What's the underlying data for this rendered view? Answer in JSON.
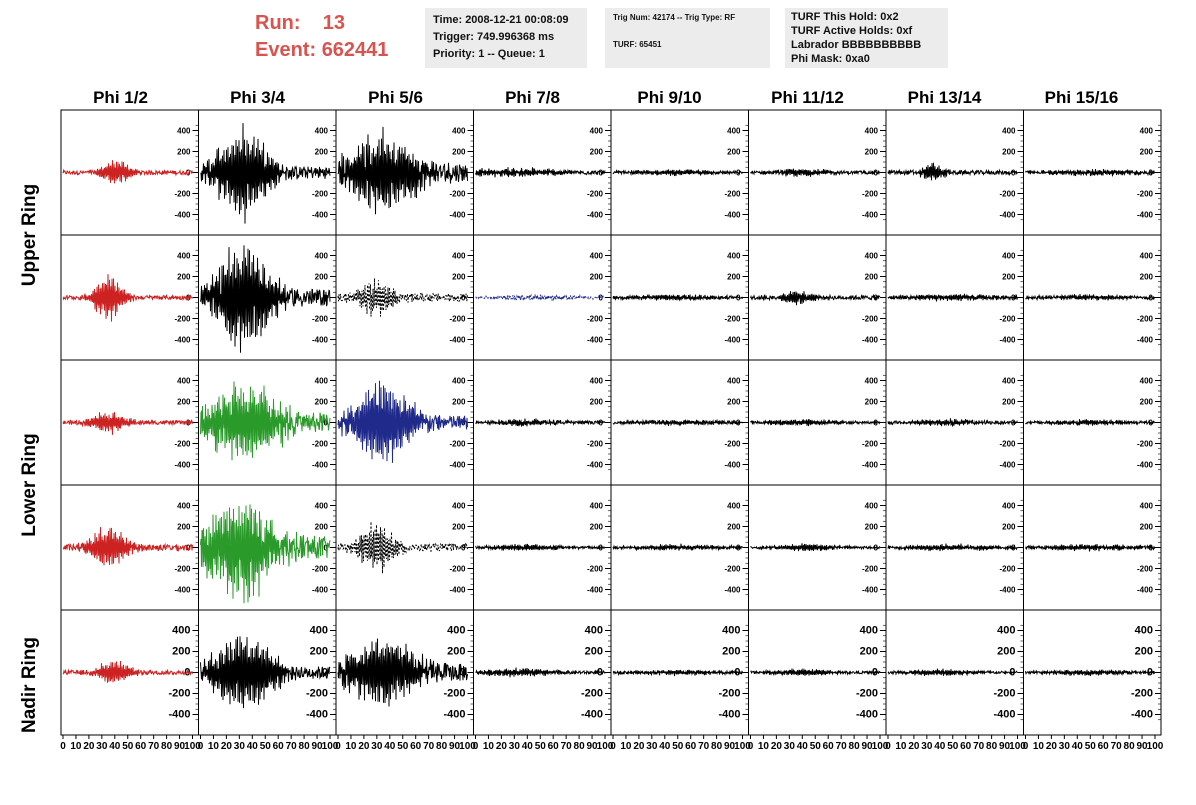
{
  "header": {
    "run_label": "Run:",
    "run_value": "13",
    "event_label": "Event:",
    "event_value": "662441"
  },
  "time_box": {
    "time": "Time: 2008-12-21 00:08:09",
    "trigger": "Trigger: 749.996368 ms",
    "priority": "Priority: 1 -- Queue: 1"
  },
  "trig_box": {
    "trig": "Trig Num: 42174 -- Trig Type: RF",
    "turf": "TURF: 65451"
  },
  "turf_box": {
    "hold": "TURF This Hold: 0x2",
    "active": "TURF Active Holds: 0xf",
    "labrador": "Labrador BBBBBBBBBB",
    "phimask": "Phi Mask: 0xa0"
  },
  "chart_data": {
    "type": "line",
    "columns": [
      "Phi 1/2",
      "Phi 3/4",
      "Phi 5/6",
      "Phi 7/8",
      "Phi 9/10",
      "Phi 11/12",
      "Phi 13/14",
      "Phi 15/16"
    ],
    "rings": [
      "Upper Ring",
      "Lower Ring",
      "Nadir Ring"
    ],
    "ylim": [
      -500,
      500
    ],
    "y_ticks": [
      400,
      200,
      0,
      -200,
      -400
    ],
    "y_tick_labels": [
      "400",
      "200",
      "0",
      "-200",
      "-400"
    ],
    "x_tick_labels": [
      "0",
      "10",
      "20",
      "30",
      "40",
      "50",
      "60",
      "70",
      "80",
      "90",
      "100"
    ],
    "xlim": [
      0,
      100
    ],
    "rows": [
      [
        {
          "color": "#cc2222",
          "peak": 130,
          "center": 40,
          "width": 12,
          "noise": 20
        },
        {
          "color": "#000000",
          "peak": 450,
          "center": 33,
          "width": 22,
          "noise": 60
        },
        {
          "color": "#000000",
          "peak": 380,
          "center": 35,
          "width": 30,
          "noise": 90
        },
        {
          "color": "#000000",
          "peak": 40,
          "center": 30,
          "width": 40,
          "noise": 18
        },
        {
          "color": "#000000",
          "peak": 25,
          "center": 50,
          "width": 40,
          "noise": 12
        },
        {
          "color": "#000000",
          "peak": 40,
          "center": 40,
          "width": 20,
          "noise": 15
        },
        {
          "color": "#000000",
          "peak": 90,
          "center": 35,
          "width": 10,
          "noise": 20
        },
        {
          "color": "#000000",
          "peak": 30,
          "center": 50,
          "width": 40,
          "noise": 15
        }
      ],
      [
        {
          "color": "#cc2222",
          "peak": 240,
          "center": 35,
          "width": 12,
          "noise": 20
        },
        {
          "color": "#000000",
          "peak": 520,
          "center": 33,
          "width": 25,
          "noise": 80
        },
        {
          "color": "#000000",
          "peak": 180,
          "center": 30,
          "width": 15,
          "noise": 40,
          "dashed": true
        },
        {
          "color": "#1f2a8a",
          "peak": 25,
          "center": 50,
          "width": 40,
          "noise": 10,
          "dashed": true
        },
        {
          "color": "#000000",
          "peak": 25,
          "center": 50,
          "width": 40,
          "noise": 12
        },
        {
          "color": "#000000",
          "peak": 60,
          "center": 35,
          "width": 15,
          "noise": 20
        },
        {
          "color": "#000000",
          "peak": 30,
          "center": 50,
          "width": 40,
          "noise": 15
        },
        {
          "color": "#000000",
          "peak": 25,
          "center": 50,
          "width": 40,
          "noise": 12
        }
      ],
      [
        {
          "color": "#cc2222",
          "peak": 110,
          "center": 35,
          "width": 15,
          "noise": 20
        },
        {
          "color": "#2a9a2a",
          "peak": 380,
          "center": 35,
          "width": 30,
          "noise": 90
        },
        {
          "color": "#1f2a8a",
          "peak": 420,
          "center": 35,
          "width": 25,
          "noise": 70
        },
        {
          "color": "#000000",
          "peak": 30,
          "center": 40,
          "width": 30,
          "noise": 15
        },
        {
          "color": "#000000",
          "peak": 25,
          "center": 50,
          "width": 40,
          "noise": 12
        },
        {
          "color": "#000000",
          "peak": 30,
          "center": 40,
          "width": 30,
          "noise": 12
        },
        {
          "color": "#000000",
          "peak": 30,
          "center": 40,
          "width": 30,
          "noise": 15
        },
        {
          "color": "#000000",
          "peak": 25,
          "center": 50,
          "width": 40,
          "noise": 12
        }
      ],
      [
        {
          "color": "#cc2222",
          "peak": 220,
          "center": 35,
          "width": 15,
          "noise": 30
        },
        {
          "color": "#2a9a2a",
          "peak": 520,
          "center": 30,
          "width": 30,
          "noise": 110
        },
        {
          "color": "#000000",
          "peak": 250,
          "center": 30,
          "width": 15,
          "noise": 35,
          "dashed": true
        },
        {
          "color": "#000000",
          "peak": 30,
          "center": 40,
          "width": 30,
          "noise": 12
        },
        {
          "color": "#000000",
          "peak": 25,
          "center": 50,
          "width": 40,
          "noise": 12
        },
        {
          "color": "#000000",
          "peak": 35,
          "center": 45,
          "width": 25,
          "noise": 12
        },
        {
          "color": "#000000",
          "peak": 30,
          "center": 50,
          "width": 40,
          "noise": 12
        },
        {
          "color": "#000000",
          "peak": 30,
          "center": 50,
          "width": 40,
          "noise": 12
        }
      ],
      [
        {
          "color": "#cc2222",
          "peak": 120,
          "center": 40,
          "width": 15,
          "noise": 20
        },
        {
          "color": "#000000",
          "peak": 420,
          "center": 33,
          "width": 25,
          "noise": 60
        },
        {
          "color": "#000000",
          "peak": 340,
          "center": 35,
          "width": 30,
          "noise": 80
        },
        {
          "color": "#000000",
          "peak": 40,
          "center": 35,
          "width": 30,
          "noise": 15
        },
        {
          "color": "#000000",
          "peak": 25,
          "center": 50,
          "width": 40,
          "noise": 12
        },
        {
          "color": "#000000",
          "peak": 30,
          "center": 40,
          "width": 30,
          "noise": 12
        },
        {
          "color": "#000000",
          "peak": 30,
          "center": 40,
          "width": 30,
          "noise": 12
        },
        {
          "color": "#000000",
          "peak": 25,
          "center": 50,
          "width": 40,
          "noise": 12
        }
      ]
    ]
  }
}
